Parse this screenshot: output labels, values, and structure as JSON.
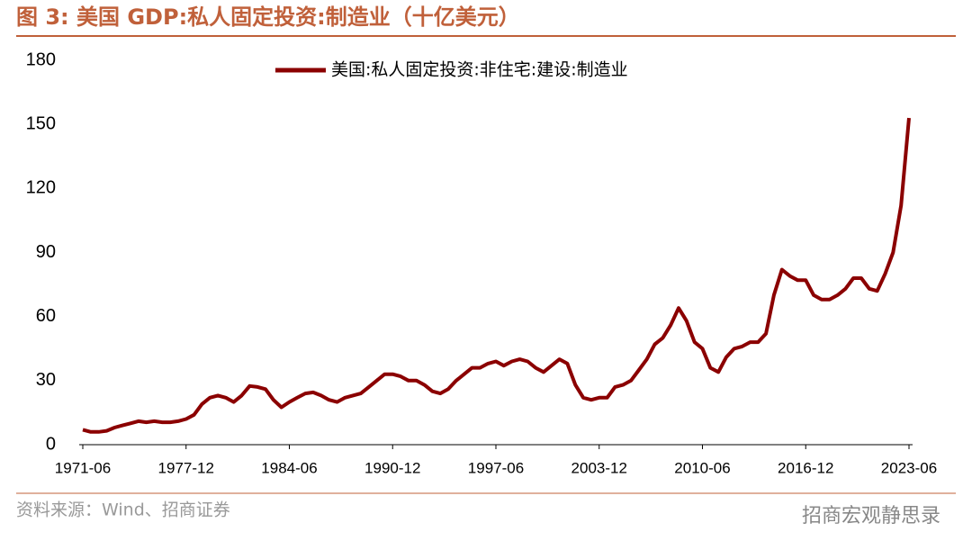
{
  "chart_data": {
    "type": "line",
    "title": "图 3:  美国 GDP:私人固定投资:制造业（十亿美元）",
    "source": "资料来源：Wind、招商证券",
    "watermark": "招商宏观静思录",
    "categories": [
      "1971-06",
      null,
      null,
      null,
      null,
      null,
      null,
      null,
      null,
      null,
      null,
      null,
      null,
      "1977-12",
      null,
      null,
      null,
      null,
      null,
      null,
      null,
      null,
      null,
      null,
      null,
      null,
      "1984-06",
      null,
      null,
      null,
      null,
      null,
      null,
      null,
      null,
      null,
      null,
      null,
      null,
      "1990-12",
      null,
      null,
      null,
      null,
      null,
      null,
      null,
      null,
      null,
      null,
      null,
      null,
      "1997-06",
      null,
      null,
      null,
      null,
      null,
      null,
      null,
      null,
      null,
      null,
      null,
      null,
      "2003-12",
      null,
      null,
      null,
      null,
      null,
      null,
      null,
      null,
      null,
      null,
      null,
      null,
      "2010-06",
      null,
      null,
      null,
      null,
      null,
      null,
      null,
      null,
      null,
      null,
      null,
      null,
      "2016-12",
      null,
      null,
      null,
      null,
      null,
      null,
      null,
      null,
      null,
      null,
      null,
      null,
      "2023-06"
    ],
    "series": [
      {
        "name": "美国:私人固定投资:非住宅:建设:制造业",
        "color": "#8b0000",
        "values": [
          7,
          6,
          6,
          6.5,
          8,
          9,
          10,
          11,
          10.5,
          11,
          10.5,
          10.5,
          11,
          12,
          14,
          19,
          22,
          23,
          22,
          20,
          23,
          27.5,
          27,
          26,
          21,
          17.5,
          20,
          22,
          24,
          24.5,
          23,
          21,
          20,
          22,
          23,
          24,
          27,
          30,
          33,
          33,
          32,
          30,
          30,
          28,
          25,
          24,
          26,
          30,
          33,
          36,
          36,
          38,
          39,
          37,
          39,
          40,
          39,
          36,
          34,
          37,
          40,
          38,
          28,
          22,
          21,
          22,
          22,
          27,
          28,
          30,
          35,
          40,
          47,
          50,
          56,
          64,
          58,
          48,
          45,
          36,
          34,
          41,
          45,
          46,
          48,
          48,
          52,
          70,
          82,
          79,
          77,
          77,
          70,
          68,
          68,
          70,
          73,
          78,
          78,
          73,
          72,
          80,
          90,
          112,
          153
        ]
      }
    ],
    "ylim": [
      0,
      180
    ],
    "yticks": [
      0,
      30,
      60,
      90,
      120,
      150,
      180
    ],
    "grid": false,
    "legend": "top"
  }
}
